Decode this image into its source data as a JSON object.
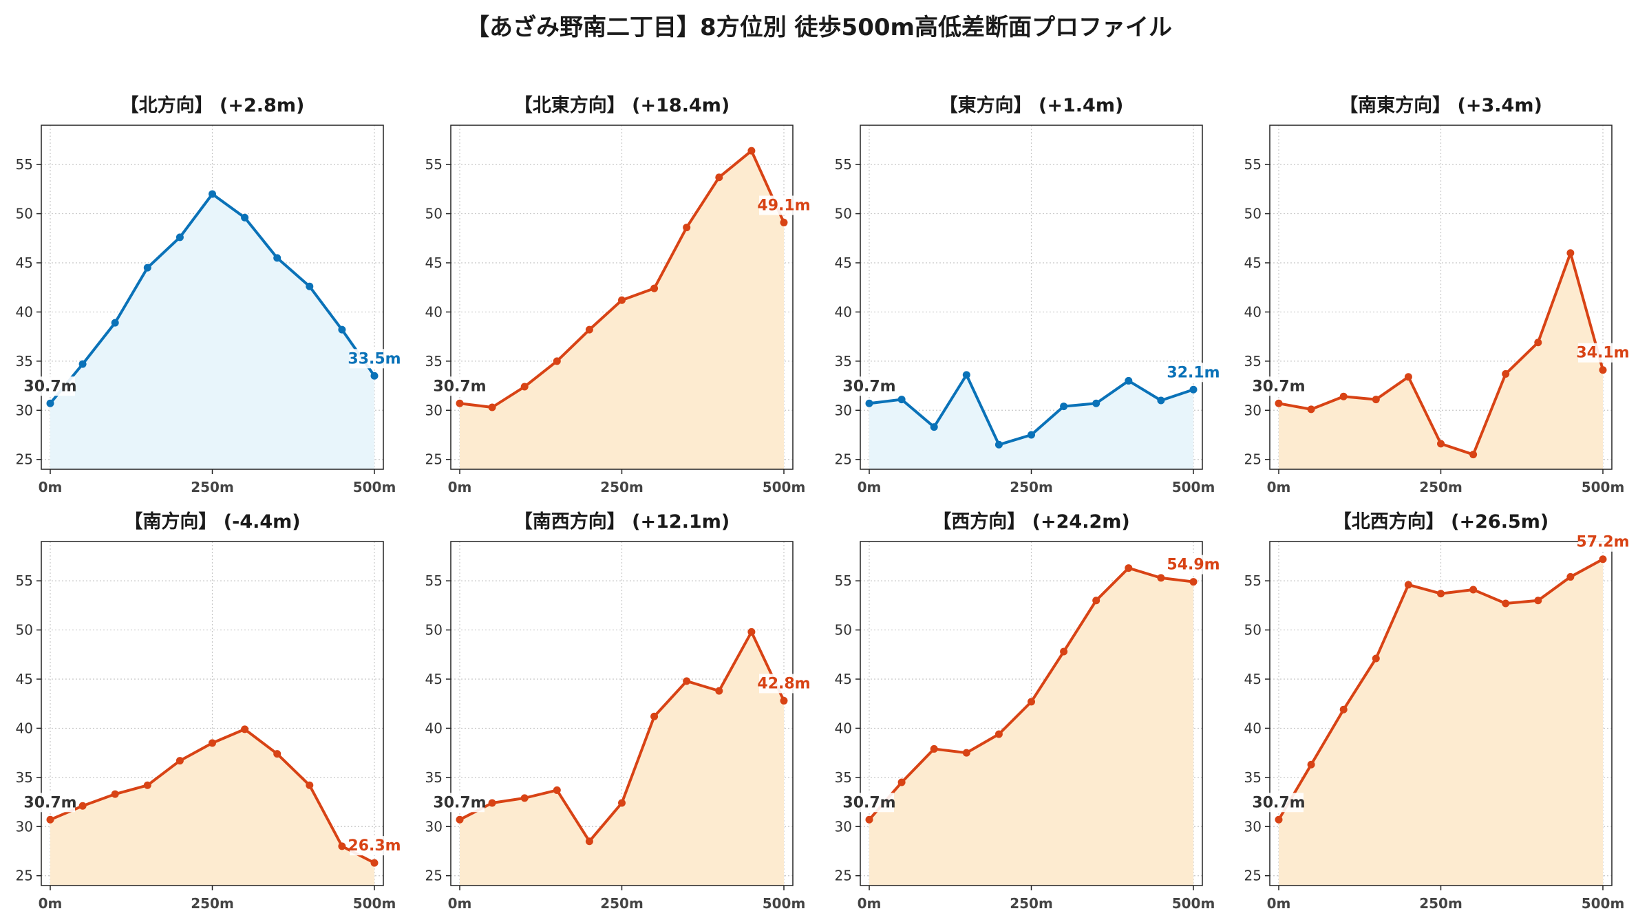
{
  "title": "【あざみ野南二丁目】8方位別 徒歩500m高低差断面プロファイル",
  "colors": {
    "uphill_line": "#d84315",
    "uphill_fill": "#fdebd0",
    "flat_line": "#0a72b8",
    "flat_fill": "#e8f5fb",
    "start_label": "#333333",
    "grid": "#c8c8c8"
  },
  "chart_data": [
    {
      "type": "area",
      "title": "【北方向】 (+2.8m)",
      "x": [
        0,
        50,
        100,
        150,
        200,
        250,
        300,
        350,
        400,
        450,
        500
      ],
      "y": [
        30.7,
        34.7,
        38.9,
        44.5,
        47.6,
        52.0,
        49.6,
        45.5,
        42.6,
        38.2,
        33.5
      ],
      "xticks": [
        "0m",
        "250m",
        "500m"
      ],
      "yticks": [
        25,
        30,
        35,
        40,
        45,
        50,
        55
      ],
      "ylim": [
        24,
        59
      ],
      "start_label": "30.7m",
      "end_label": "33.5m",
      "scheme": "flat",
      "grid": true
    },
    {
      "type": "area",
      "title": "【北東方向】 (+18.4m)",
      "x": [
        0,
        50,
        100,
        150,
        200,
        250,
        300,
        350,
        400,
        450,
        500
      ],
      "y": [
        30.7,
        30.3,
        32.4,
        35.0,
        38.2,
        41.2,
        42.4,
        48.6,
        53.7,
        56.4,
        49.1
      ],
      "xticks": [
        "0m",
        "250m",
        "500m"
      ],
      "yticks": [
        25,
        30,
        35,
        40,
        45,
        50,
        55
      ],
      "ylim": [
        24,
        59
      ],
      "start_label": "30.7m",
      "end_label": "49.1m",
      "scheme": "uphill",
      "grid": true
    },
    {
      "type": "area",
      "title": "【東方向】 (+1.4m)",
      "x": [
        0,
        50,
        100,
        150,
        200,
        250,
        300,
        350,
        400,
        450,
        500
      ],
      "y": [
        30.7,
        31.1,
        28.3,
        33.6,
        26.5,
        27.5,
        30.4,
        30.7,
        33.0,
        31.0,
        32.1
      ],
      "xticks": [
        "0m",
        "250m",
        "500m"
      ],
      "yticks": [
        25,
        30,
        35,
        40,
        45,
        50,
        55
      ],
      "ylim": [
        24,
        59
      ],
      "start_label": "30.7m",
      "end_label": "32.1m",
      "scheme": "flat",
      "grid": true
    },
    {
      "type": "area",
      "title": "【南東方向】 (+3.4m)",
      "x": [
        0,
        50,
        100,
        150,
        200,
        250,
        300,
        350,
        400,
        450,
        500
      ],
      "y": [
        30.7,
        30.1,
        31.4,
        31.1,
        33.4,
        26.6,
        25.5,
        33.7,
        36.9,
        46.0,
        34.1
      ],
      "xticks": [
        "0m",
        "250m",
        "500m"
      ],
      "yticks": [
        25,
        30,
        35,
        40,
        45,
        50,
        55
      ],
      "ylim": [
        24,
        59
      ],
      "start_label": "30.7m",
      "end_label": "34.1m",
      "scheme": "uphill",
      "grid": true
    },
    {
      "type": "area",
      "title": "【南方向】 (-4.4m)",
      "x": [
        0,
        50,
        100,
        150,
        200,
        250,
        300,
        350,
        400,
        450,
        500
      ],
      "y": [
        30.7,
        32.1,
        33.3,
        34.2,
        36.7,
        38.5,
        39.9,
        37.4,
        34.2,
        28.0,
        26.3
      ],
      "xticks": [
        "0m",
        "250m",
        "500m"
      ],
      "yticks": [
        25,
        30,
        35,
        40,
        45,
        50,
        55
      ],
      "ylim": [
        24,
        59
      ],
      "start_label": "30.7m",
      "end_label": "26.3m",
      "scheme": "uphill",
      "grid": true
    },
    {
      "type": "area",
      "title": "【南西方向】 (+12.1m)",
      "x": [
        0,
        50,
        100,
        150,
        200,
        250,
        300,
        350,
        400,
        450,
        500
      ],
      "y": [
        30.7,
        32.4,
        32.9,
        33.7,
        28.5,
        32.4,
        41.2,
        44.8,
        43.8,
        49.8,
        42.8
      ],
      "xticks": [
        "0m",
        "250m",
        "500m"
      ],
      "yticks": [
        25,
        30,
        35,
        40,
        45,
        50,
        55
      ],
      "ylim": [
        24,
        59
      ],
      "start_label": "30.7m",
      "end_label": "42.8m",
      "scheme": "uphill",
      "grid": true
    },
    {
      "type": "area",
      "title": "【西方向】 (+24.2m)",
      "x": [
        0,
        50,
        100,
        150,
        200,
        250,
        300,
        350,
        400,
        450,
        500
      ],
      "y": [
        30.7,
        34.5,
        37.9,
        37.5,
        39.4,
        42.7,
        47.8,
        53.0,
        56.3,
        55.3,
        54.9
      ],
      "xticks": [
        "0m",
        "250m",
        "500m"
      ],
      "yticks": [
        25,
        30,
        35,
        40,
        45,
        50,
        55
      ],
      "ylim": [
        24,
        59
      ],
      "start_label": "30.7m",
      "end_label": "54.9m",
      "scheme": "uphill",
      "grid": true
    },
    {
      "type": "area",
      "title": "【北西方向】 (+26.5m)",
      "x": [
        0,
        50,
        100,
        150,
        200,
        250,
        300,
        350,
        400,
        450,
        500
      ],
      "y": [
        30.7,
        36.3,
        41.9,
        47.1,
        54.6,
        53.7,
        54.1,
        52.7,
        53.0,
        55.4,
        57.2
      ],
      "xticks": [
        "0m",
        "250m",
        "500m"
      ],
      "yticks": [
        25,
        30,
        35,
        40,
        45,
        50,
        55
      ],
      "ylim": [
        24,
        59
      ],
      "start_label": "30.7m",
      "end_label": "57.2m",
      "scheme": "uphill",
      "grid": true
    }
  ]
}
